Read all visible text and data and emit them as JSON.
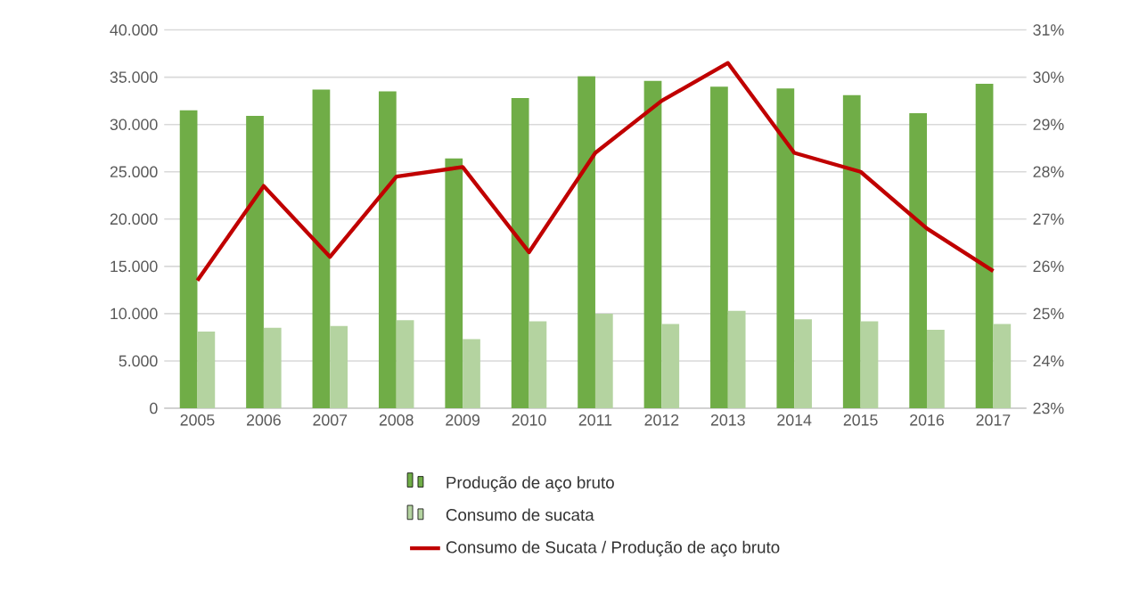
{
  "chart_data": {
    "type": "bar",
    "categories": [
      "2005",
      "2006",
      "2007",
      "2008",
      "2009",
      "2010",
      "2011",
      "2012",
      "2013",
      "2014",
      "2015",
      "2016",
      "2017"
    ],
    "series": [
      {
        "name": "Produção de aço bruto",
        "color": "#70ad47",
        "values": [
          31500,
          30900,
          33700,
          33500,
          26400,
          32800,
          35100,
          34600,
          34000,
          33800,
          33100,
          31200,
          34300
        ]
      },
      {
        "name": "Consumo de sucata",
        "color": "#b4d3a0",
        "values": [
          8100,
          8500,
          8700,
          9300,
          7300,
          9200,
          10000,
          8900,
          10300,
          9400,
          9200,
          8300,
          8900
        ]
      },
      {
        "name": "Consumo de Sucata / Produção de aço bruto",
        "color": "#c00000",
        "type": "line",
        "axis": "y2",
        "values": [
          25.7,
          27.7,
          26.2,
          27.9,
          28.1,
          26.3,
          28.4,
          29.5,
          30.3,
          28.4,
          28.0,
          26.8,
          25.9
        ]
      }
    ],
    "ylim": [
      0,
      40000
    ],
    "yticks": [
      0,
      {
        "value": 5000,
        "label": "5.000"
      },
      {
        "value": 10000,
        "label": "10.000"
      },
      {
        "value": 15000,
        "label": "15.000"
      },
      {
        "value": 20000,
        "label": "20.000"
      },
      {
        "value": 25000,
        "label": "25.000"
      },
      {
        "value": 30000,
        "label": "30.000"
      },
      {
        "value": 35000,
        "label": "35.000"
      },
      {
        "value": 40000,
        "label": "40.000"
      }
    ],
    "y2lim": [
      23,
      31
    ],
    "y2ticks": [
      {
        "value": 23,
        "label": "23%"
      },
      {
        "value": 24,
        "label": "24%"
      },
      {
        "value": 25,
        "label": "25%"
      },
      {
        "value": 26,
        "label": "26%"
      },
      {
        "value": 27,
        "label": "27%"
      },
      {
        "value": 28,
        "label": "28%"
      },
      {
        "value": 29,
        "label": "29%"
      },
      {
        "value": 30,
        "label": "30%"
      },
      {
        "value": 31,
        "label": "31%"
      }
    ],
    "grid": "y",
    "legend": "bottom"
  }
}
